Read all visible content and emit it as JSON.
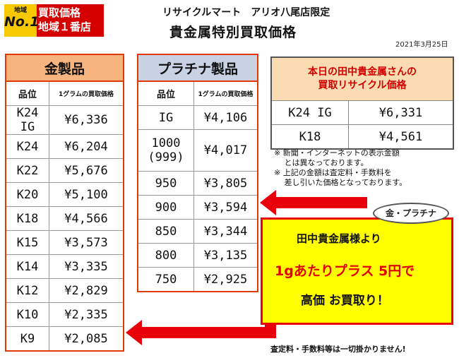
{
  "badge": {
    "small": "地域",
    "big": "No.1",
    "line1": "買取価格",
    "line2": "地域１番店"
  },
  "header": {
    "store": "リサイクルマート　アリオ八尾店限定",
    "title": "貴金属特別買取価格",
    "date": "2021年3月25日"
  },
  "gold": {
    "title": "金製品",
    "col1": "品位",
    "col2": "1グラムの買取価格",
    "rows": [
      [
        "K24 IG",
        "¥6,336"
      ],
      [
        "K24",
        "¥6,204"
      ],
      [
        "K22",
        "¥5,676"
      ],
      [
        "K20",
        "¥5,100"
      ],
      [
        "K18",
        "¥4,566"
      ],
      [
        "K15",
        "¥3,573"
      ],
      [
        "K14",
        "¥3,335"
      ],
      [
        "K12",
        "¥2,829"
      ],
      [
        "K10",
        "¥2,335"
      ],
      [
        "K9",
        "¥2,085"
      ]
    ]
  },
  "platinum": {
    "title": "プラチナ製品",
    "col1": "品位",
    "col2": "1グラムの買取価格",
    "rows": [
      [
        "IG",
        "¥4,106"
      ],
      [
        "1000",
        "(999)",
        "¥4,017"
      ],
      [
        "950",
        "¥3,805"
      ],
      [
        "900",
        "¥3,594"
      ],
      [
        "850",
        "¥3,344"
      ],
      [
        "800",
        "¥3,135"
      ],
      [
        "750",
        "¥2,925"
      ]
    ]
  },
  "today": {
    "line1": "本日の田中貴金属さんの",
    "line2": "買取リサイクル価格",
    "rows": [
      [
        "K24 IG",
        "¥6,331"
      ],
      [
        "K18",
        "¥4,561"
      ]
    ]
  },
  "notes": [
    "※ 新聞・インターネットの表示金額",
    "　 とは異なっております。",
    "※ 上記の金額は査定料・手数料を",
    "　 差し引いた価格となっております。"
  ],
  "promo": {
    "bubble": "金・プラチナ",
    "line1": "田中貴金属様より",
    "line2": "1gあたりプラス 5円で",
    "line3": "高価 お買取り！"
  },
  "footer": "査定料・手数料等は一切掛かりません!",
  "colors": {
    "red": "#e8000a",
    "gold_header": "#f7b47e",
    "plat_header": "#c9d2e3",
    "promo_bg": "#ffff00"
  }
}
